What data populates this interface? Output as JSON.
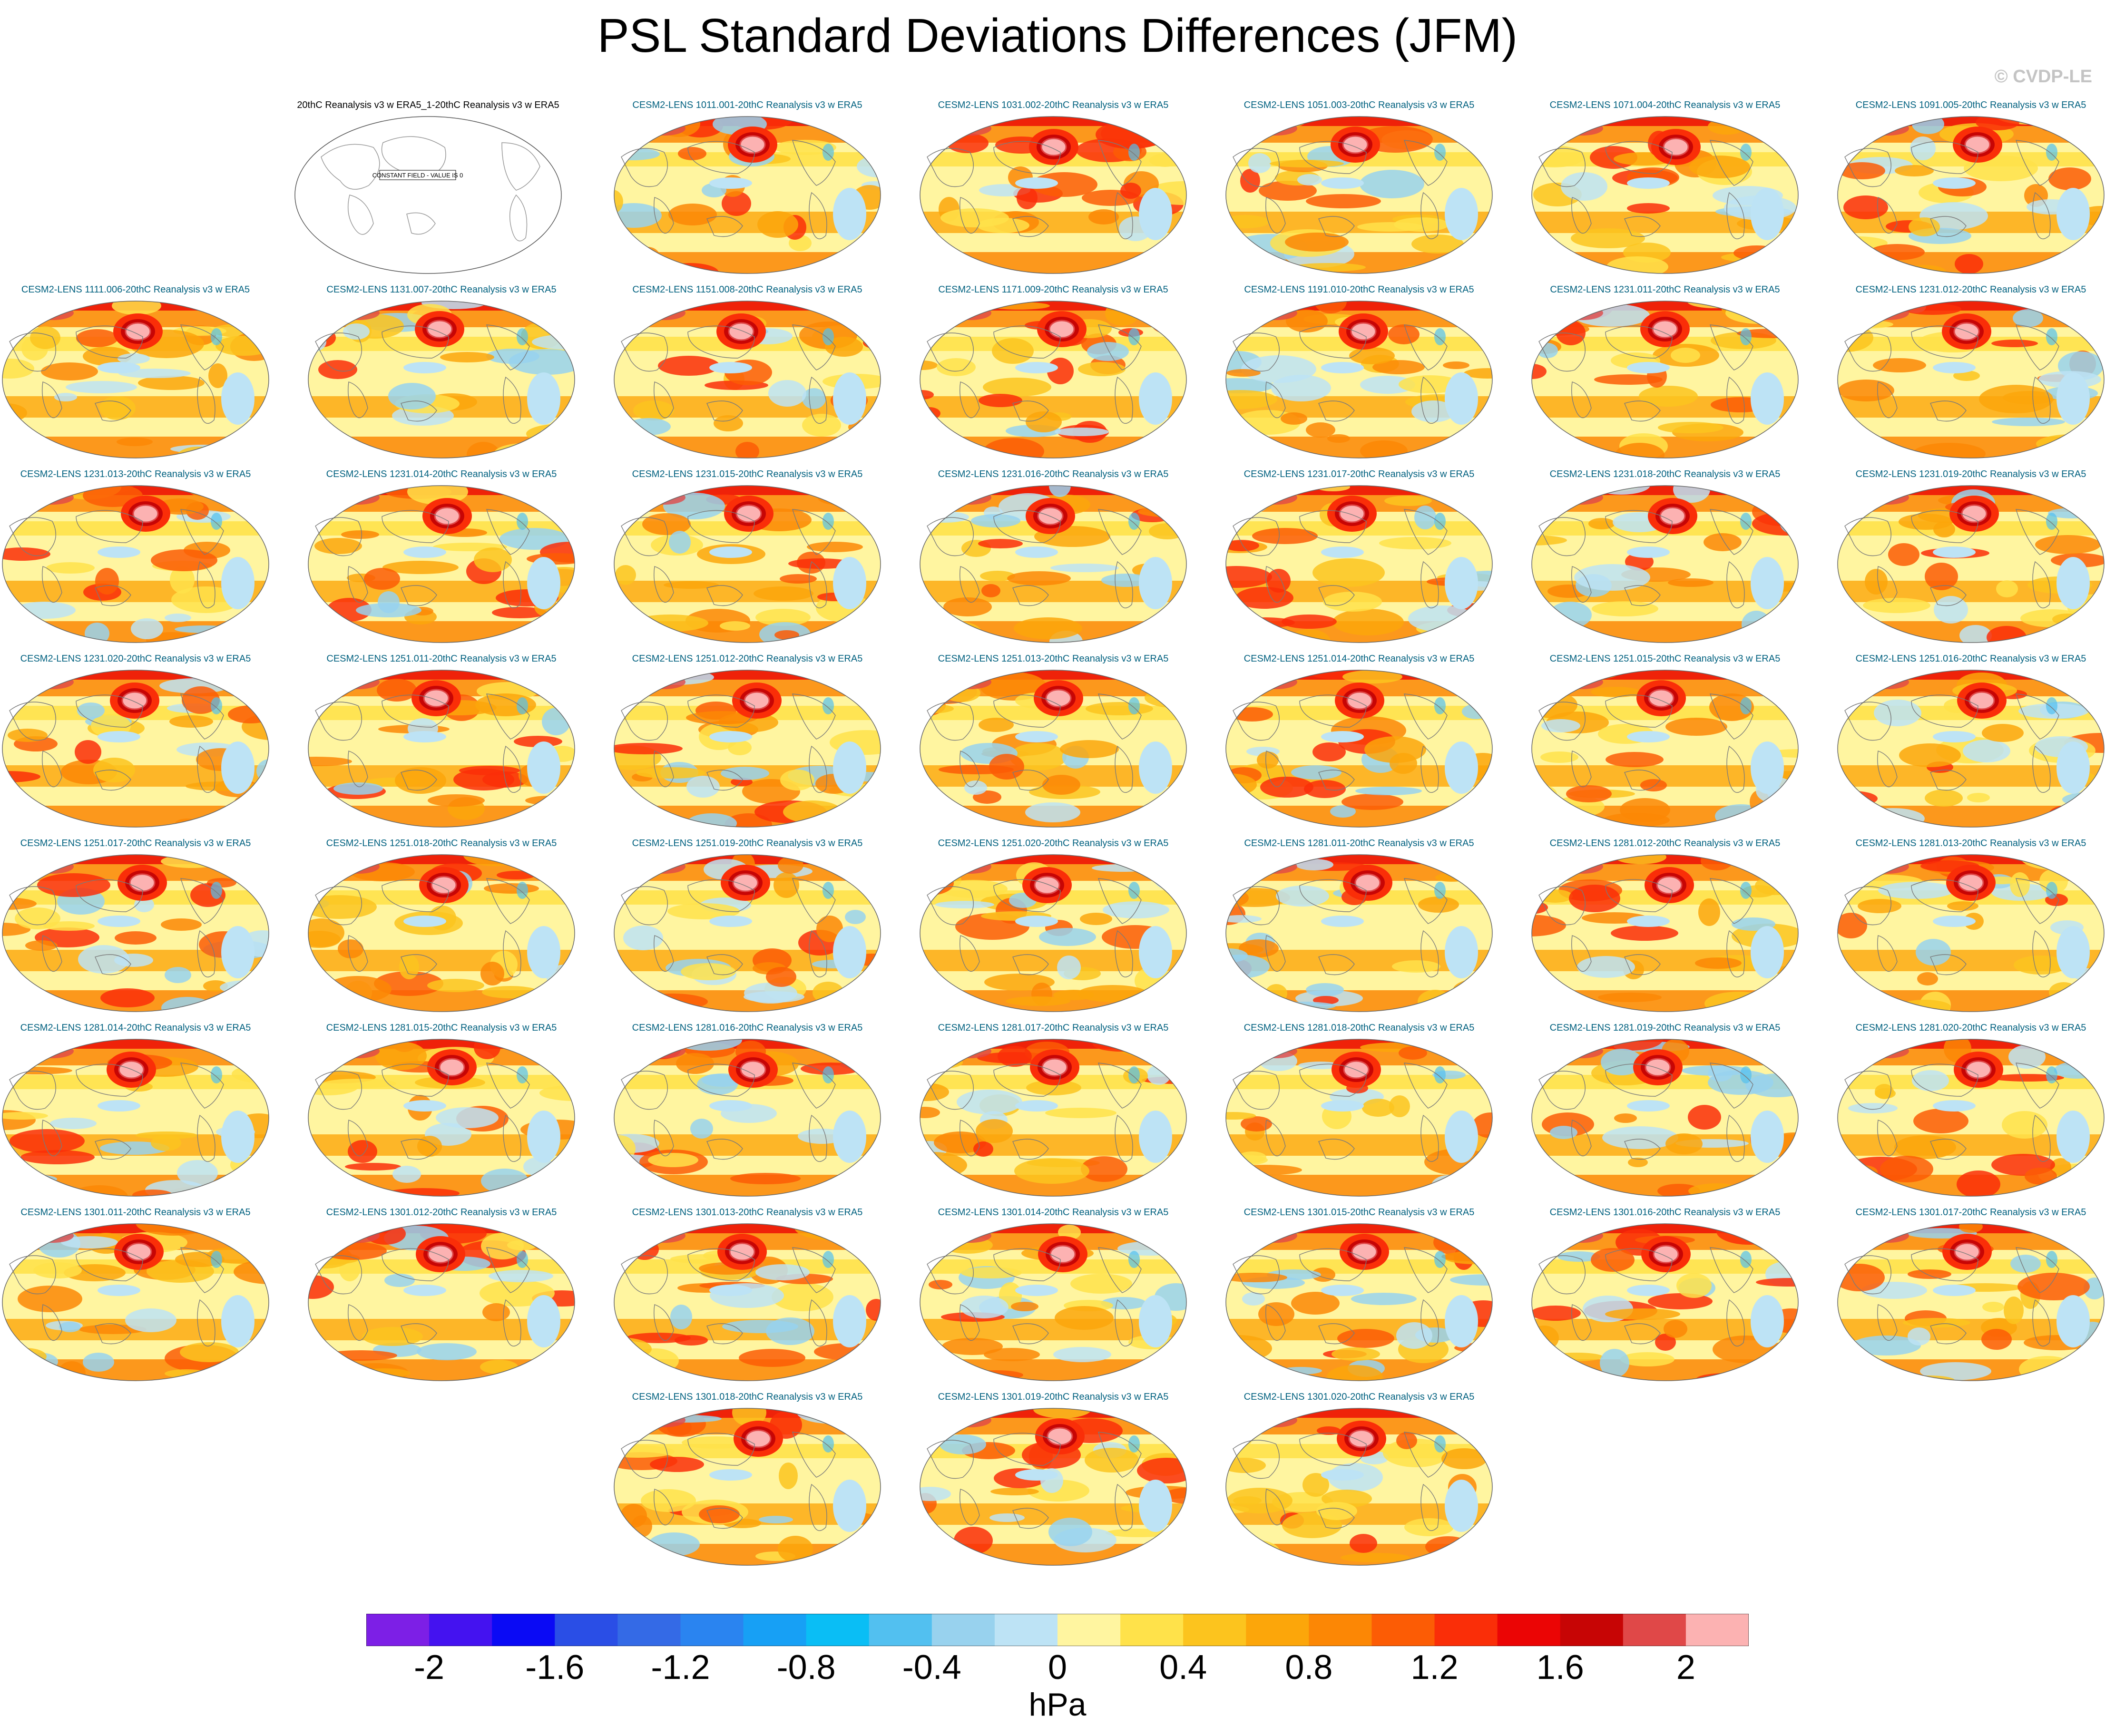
{
  "title": "PSL Standard Deviations Differences (JFM)",
  "copyright": "© CVDP-LE",
  "reference_panel": {
    "title": "20thC Reanalysis v3 w ERA5_1-20thC Reanalysis v3 w ERA5",
    "note": "CONSTANT FIELD - VALUE IS 0"
  },
  "panels": [
    "CESM2-LENS 1011.001-20thC Reanalysis v3 w ERA5",
    "CESM2-LENS 1031.002-20thC Reanalysis v3 w ERA5",
    "CESM2-LENS 1051.003-20thC Reanalysis v3 w ERA5",
    "CESM2-LENS 1071.004-20thC Reanalysis v3 w ERA5",
    "CESM2-LENS 1091.005-20thC Reanalysis v3 w ERA5",
    "CESM2-LENS 1111.006-20thC Reanalysis v3 w ERA5",
    "CESM2-LENS 1131.007-20thC Reanalysis v3 w ERA5",
    "CESM2-LENS 1151.008-20thC Reanalysis v3 w ERA5",
    "CESM2-LENS 1171.009-20thC Reanalysis v3 w ERA5",
    "CESM2-LENS 1191.010-20thC Reanalysis v3 w ERA5",
    "CESM2-LENS 1231.011-20thC Reanalysis v3 w ERA5",
    "CESM2-LENS 1231.012-20thC Reanalysis v3 w ERA5",
    "CESM2-LENS 1231.013-20thC Reanalysis v3 w ERA5",
    "CESM2-LENS 1231.014-20thC Reanalysis v3 w ERA5",
    "CESM2-LENS 1231.015-20thC Reanalysis v3 w ERA5",
    "CESM2-LENS 1231.016-20thC Reanalysis v3 w ERA5",
    "CESM2-LENS 1231.017-20thC Reanalysis v3 w ERA5",
    "CESM2-LENS 1231.018-20thC Reanalysis v3 w ERA5",
    "CESM2-LENS 1231.019-20thC Reanalysis v3 w ERA5",
    "CESM2-LENS 1231.020-20thC Reanalysis v3 w ERA5",
    "CESM2-LENS 1251.011-20thC Reanalysis v3 w ERA5",
    "CESM2-LENS 1251.012-20thC Reanalysis v3 w ERA5",
    "CESM2-LENS 1251.013-20thC Reanalysis v3 w ERA5",
    "CESM2-LENS 1251.014-20thC Reanalysis v3 w ERA5",
    "CESM2-LENS 1251.015-20thC Reanalysis v3 w ERA5",
    "CESM2-LENS 1251.016-20thC Reanalysis v3 w ERA5",
    "CESM2-LENS 1251.017-20thC Reanalysis v3 w ERA5",
    "CESM2-LENS 1251.018-20thC Reanalysis v3 w ERA5",
    "CESM2-LENS 1251.019-20thC Reanalysis v3 w ERA5",
    "CESM2-LENS 1251.020-20thC Reanalysis v3 w ERA5",
    "CESM2-LENS 1281.011-20thC Reanalysis v3 w ERA5",
    "CESM2-LENS 1281.012-20thC Reanalysis v3 w ERA5",
    "CESM2-LENS 1281.013-20thC Reanalysis v3 w ERA5",
    "CESM2-LENS 1281.014-20thC Reanalysis v3 w ERA5",
    "CESM2-LENS 1281.015-20thC Reanalysis v3 w ERA5",
    "CESM2-LENS 1281.016-20thC Reanalysis v3 w ERA5",
    "CESM2-LENS 1281.017-20thC Reanalysis v3 w ERA5",
    "CESM2-LENS 1281.018-20thC Reanalysis v3 w ERA5",
    "CESM2-LENS 1281.019-20thC Reanalysis v3 w ERA5",
    "CESM2-LENS 1281.020-20thC Reanalysis v3 w ERA5",
    "CESM2-LENS 1301.011-20thC Reanalysis v3 w ERA5",
    "CESM2-LENS 1301.012-20thC Reanalysis v3 w ERA5",
    "CESM2-LENS 1301.013-20thC Reanalysis v3 w ERA5",
    "CESM2-LENS 1301.014-20thC Reanalysis v3 w ERA5",
    "CESM2-LENS 1301.015-20thC Reanalysis v3 w ERA5",
    "CESM2-LENS 1301.016-20thC Reanalysis v3 w ERA5",
    "CESM2-LENS 1301.017-20thC Reanalysis v3 w ERA5",
    "CESM2-LENS 1301.018-20thC Reanalysis v3 w ERA5",
    "CESM2-LENS 1301.019-20thC Reanalysis v3 w ERA5",
    "CESM2-LENS 1301.020-20thC Reanalysis v3 w ERA5"
  ],
  "colorbar": {
    "colors": [
      "#7d1fe6",
      "#4412f0",
      "#0a0af5",
      "#2a4ee6",
      "#346ae6",
      "#2a84f0",
      "#17a0f5",
      "#0abef5",
      "#52c0f0",
      "#98d2ee",
      "#bde3f5",
      "#fff5a0",
      "#ffe24a",
      "#fcc41e",
      "#fca60a",
      "#fc8705",
      "#fc5c05",
      "#fa2e08",
      "#eb0505",
      "#c70505",
      "#e04848",
      "#fcb2b2"
    ],
    "tick_labels": [
      "-2",
      "-1.6",
      "-1.2",
      "-0.8",
      "-0.4",
      "0",
      "0.4",
      "0.8",
      "1.2",
      "1.6",
      "2"
    ],
    "units": "hPa"
  },
  "title_color": "#00607f"
}
